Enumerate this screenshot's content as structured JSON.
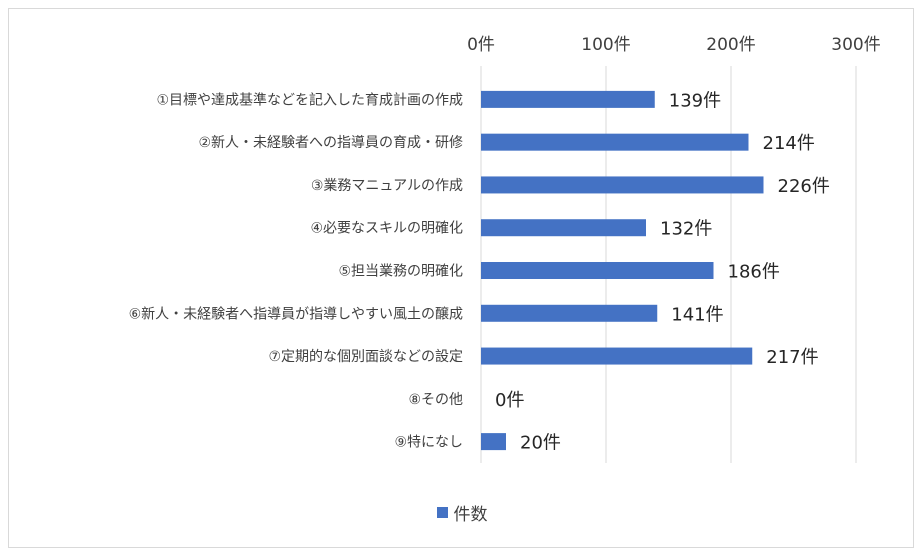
{
  "chart_data": {
    "type": "bar",
    "orientation": "horizontal",
    "categories": [
      "①目標や達成基準などを記入した育成計画の作成",
      "②新人・未経験者への指導員の育成・研修",
      "③業務マニュアルの作成",
      "④必要なスキルの明確化",
      "⑤担当業務の明確化",
      "⑥新人・未経験者へ指導員が指導しやすい風土の醸成",
      "⑦定期的な個別面談などの設定",
      "⑧その他",
      "⑨特になし"
    ],
    "series": [
      {
        "name": "件数",
        "values": [
          139,
          214,
          226,
          132,
          186,
          141,
          217,
          0,
          20
        ],
        "data_labels": [
          "139件",
          "214件",
          "226件",
          "132件",
          "186件",
          "141件",
          "217件",
          "0件",
          "20件"
        ]
      }
    ],
    "xlim": [
      0,
      300
    ],
    "xticks": [
      0,
      100,
      200,
      300
    ],
    "xtick_labels": [
      "0件",
      "100件",
      "200件",
      "300件"
    ],
    "x_axis_position": "top",
    "grid": true,
    "legend_position": "bottom",
    "colors": {
      "bar": "#4472c4",
      "grid": "#d9d9d9",
      "text": "#404040",
      "data_label": "#262626"
    }
  }
}
